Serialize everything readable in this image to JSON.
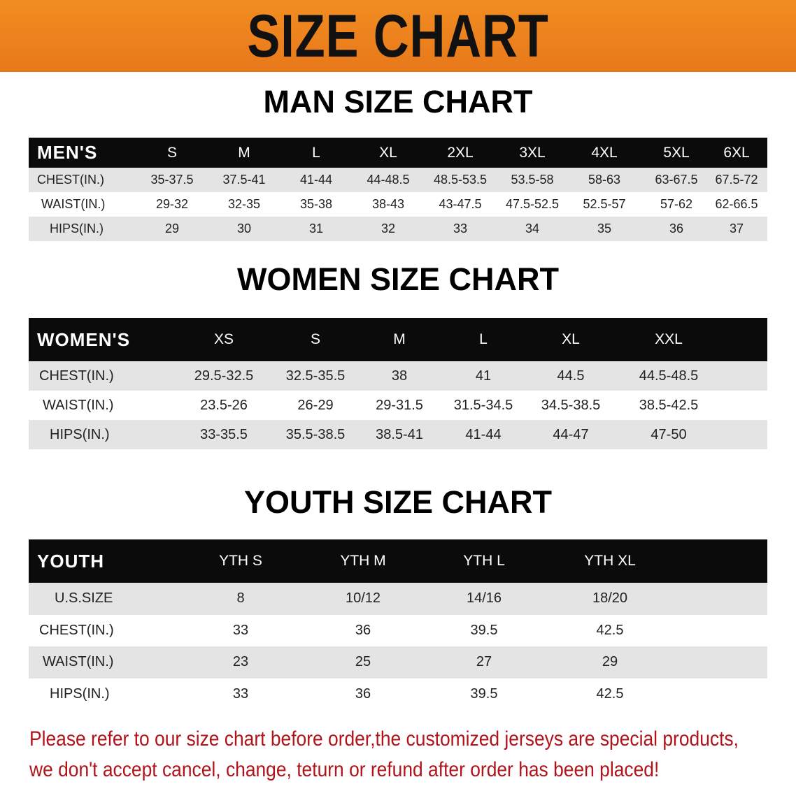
{
  "banner": {
    "title": "SIZE CHART",
    "color": "#ee8420"
  },
  "men": {
    "title": "MAN SIZE CHART",
    "header": [
      "MEN'S",
      "S",
      "M",
      "L",
      "XL",
      "2XL",
      "3XL",
      "4XL",
      "5XL",
      "6XL"
    ],
    "rows": [
      [
        "CHEST(IN.)",
        "35-37.5",
        "37.5-41",
        "41-44",
        "44-48.5",
        "48.5-53.5",
        "53.5-58",
        "58-63",
        "63-67.5",
        "67.5-72"
      ],
      [
        "WAIST(IN.)",
        "29-32",
        "32-35",
        "35-38",
        "38-43",
        "43-47.5",
        "47.5-52.5",
        "52.5-57",
        "57-62",
        "62-66.5"
      ],
      [
        "HIPS(IN.)",
        "29",
        "30",
        "31",
        "32",
        "33",
        "34",
        "35",
        "36",
        "37"
      ]
    ]
  },
  "women": {
    "title": "WOMEN SIZE CHART",
    "header": [
      "WOMEN'S",
      "XS",
      "S",
      "M",
      "L",
      "XL",
      "XXL"
    ],
    "rows": [
      [
        "CHEST(IN.)",
        "29.5-32.5",
        "32.5-35.5",
        "38",
        "41",
        "44.5",
        "44.5-48.5"
      ],
      [
        "WAIST(IN.)",
        "23.5-26",
        "26-29",
        "29-31.5",
        "31.5-34.5",
        "34.5-38.5",
        "38.5-42.5"
      ],
      [
        "HIPS(IN.)",
        "33-35.5",
        "35.5-38.5",
        "38.5-41",
        "41-44",
        "44-47",
        "47-50"
      ]
    ]
  },
  "youth": {
    "title": "YOUTH SIZE CHART",
    "header": [
      "YOUTH",
      "YTH S",
      "YTH M",
      "YTH L",
      "YTH XL"
    ],
    "rows": [
      [
        "U.S.SIZE",
        "8",
        "10/12",
        "14/16",
        "18/20"
      ],
      [
        "CHEST(IN.)",
        "33",
        "36",
        "39.5",
        "42.5"
      ],
      [
        "WAIST(IN.)",
        "23",
        "25",
        "27",
        "29"
      ],
      [
        "HIPS(IN.)",
        "33",
        "36",
        "39.5",
        "42.5"
      ]
    ]
  },
  "notice": {
    "line1": "Please refer to our size chart before order,the customized jerseys are special products,",
    "line2": "we don't accept cancel, change, teturn or refund after order has been placed!",
    "color": "#b0141a"
  }
}
